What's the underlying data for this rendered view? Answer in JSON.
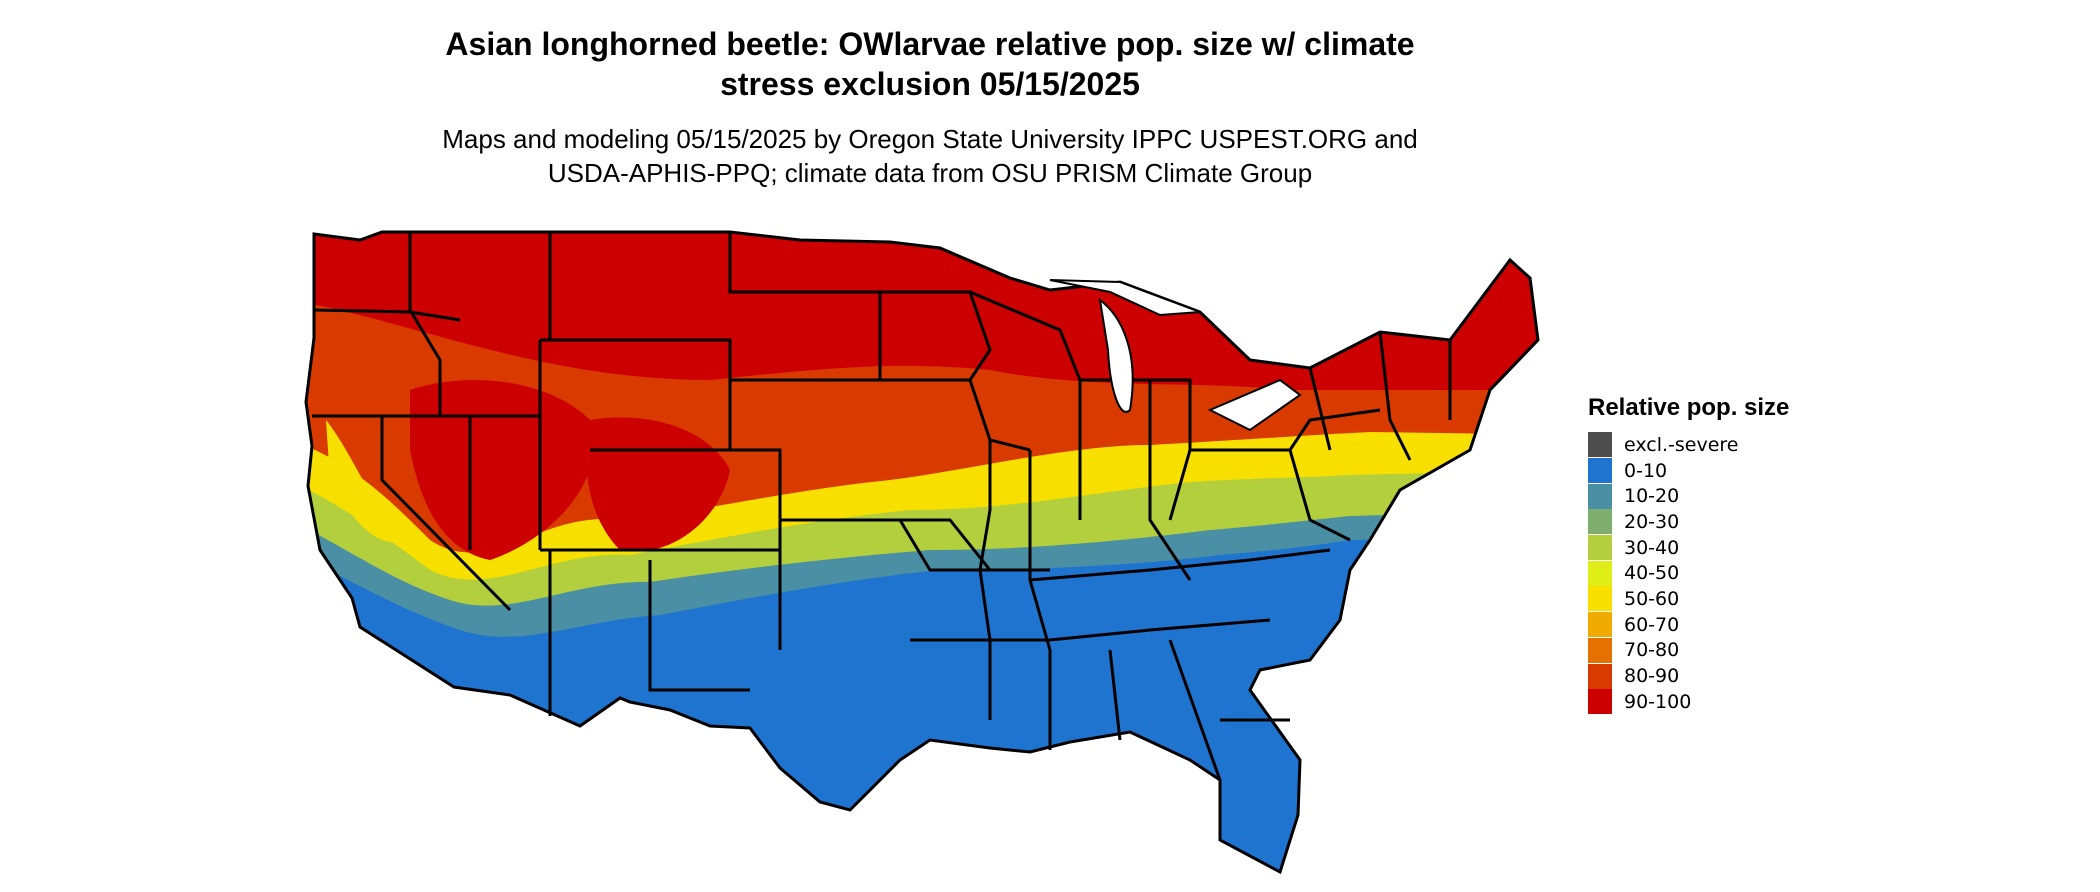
{
  "title": {
    "line1": "Asian longhorned beetle: OWlarvae relative pop. size w/ climate",
    "line2": "stress exclusion 05/15/2025"
  },
  "subtitle": {
    "line1": "Maps and modeling 05/15/2025 by Oregon State University IPPC USPEST.ORG and",
    "line2": "USDA-APHIS-PPQ; climate data from OSU PRISM Climate Group"
  },
  "legend": {
    "title": "Relative pop. size",
    "items": [
      {
        "label": "excl.-severe",
        "color": "#4d4d4d"
      },
      {
        "label": "0-10",
        "color": "#1f74cf"
      },
      {
        "label": "10-20",
        "color": "#4a8fa3"
      },
      {
        "label": "20-30",
        "color": "#7fae6e"
      },
      {
        "label": "30-40",
        "color": "#b3cf3e"
      },
      {
        "label": "40-50",
        "color": "#dfee17"
      },
      {
        "label": "50-60",
        "color": "#f7df00"
      },
      {
        "label": "60-70",
        "color": "#f0aa00"
      },
      {
        "label": "70-80",
        "color": "#e57200"
      },
      {
        "label": "80-90",
        "color": "#d93a00"
      },
      {
        "label": "90-100",
        "color": "#cc0000"
      }
    ]
  },
  "map": {
    "region": "Contiguous United States",
    "state_borders": true
  }
}
